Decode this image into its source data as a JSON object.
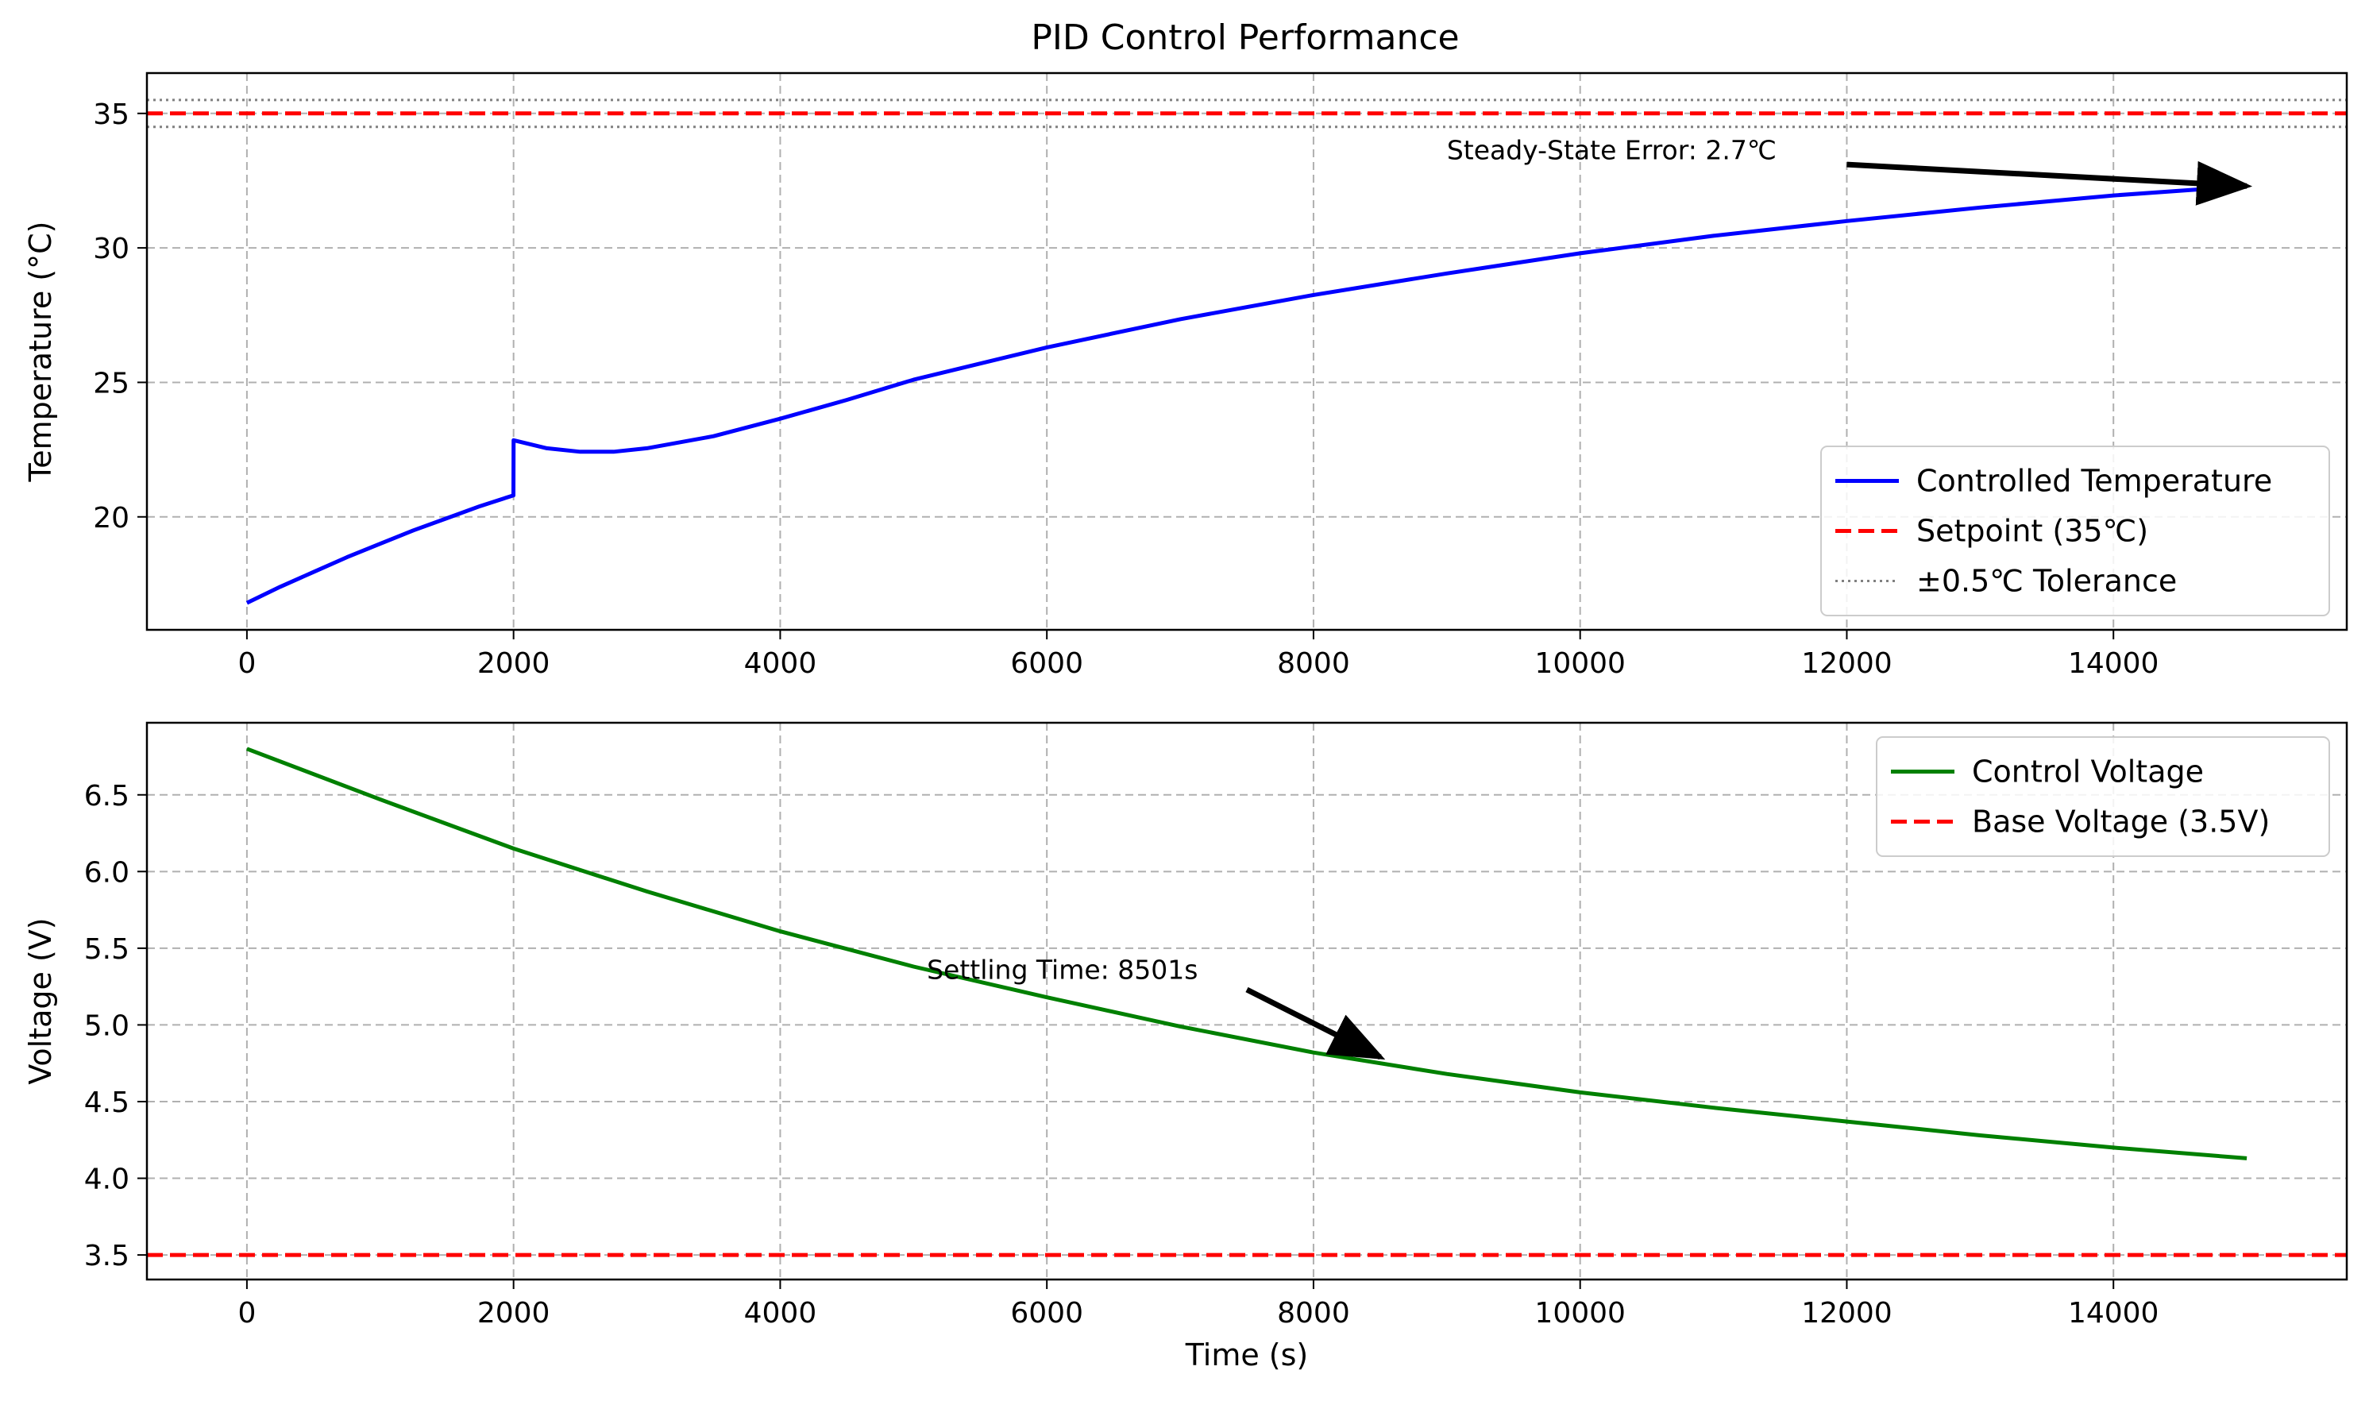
{
  "chart_data": [
    {
      "type": "line",
      "title": "PID Control Performance",
      "xlabel": "",
      "ylabel": "Temperature (°C)",
      "xlim": [
        -750,
        15750
      ],
      "ylim": [
        15.8,
        36.5
      ],
      "xticks": [
        0,
        2000,
        4000,
        6000,
        8000,
        10000,
        12000,
        14000
      ],
      "yticks": [
        20,
        25,
        30,
        35
      ],
      "grid": true,
      "legend_position": "lower-right",
      "series": [
        {
          "name": "Controlled Temperature",
          "color": "#0000ff",
          "style": "solid",
          "x": [
            0,
            250,
            500,
            750,
            1000,
            1250,
            1500,
            1750,
            1999,
            2000,
            2250,
            2500,
            2750,
            3000,
            3500,
            4000,
            4500,
            5000,
            6000,
            7000,
            8000,
            9000,
            10000,
            11000,
            12000,
            13000,
            14000,
            15000
          ],
          "y": [
            16.8,
            17.4,
            17.95,
            18.5,
            19.0,
            19.5,
            19.95,
            20.4,
            20.8,
            22.85,
            22.55,
            22.42,
            22.42,
            22.55,
            23.0,
            23.65,
            24.35,
            25.1,
            26.3,
            27.35,
            28.25,
            29.05,
            29.8,
            30.45,
            31.0,
            31.5,
            31.95,
            32.3
          ]
        },
        {
          "name": "Setpoint (35℃)",
          "color": "#ff0000",
          "style": "dashed",
          "hline": 35
        },
        {
          "name": "±0.5℃ Tolerance",
          "color": "#808080",
          "style": "dotted",
          "hlines": [
            35.5,
            34.5
          ]
        }
      ],
      "annotations": [
        {
          "text": "Steady-State Error: 2.7℃",
          "text_x": 9000,
          "text_y": 33.3,
          "arrow_start_x": 12000,
          "arrow_start_y": 33.1,
          "arrow_end_x": 15000,
          "arrow_end_y": 32.3
        }
      ]
    },
    {
      "type": "line",
      "title": "",
      "xlabel": "Time (s)",
      "ylabel": "Voltage (V)",
      "xlim": [
        -750,
        15750
      ],
      "ylim": [
        3.34,
        6.97
      ],
      "xticks": [
        0,
        2000,
        4000,
        6000,
        8000,
        10000,
        12000,
        14000
      ],
      "yticks": [
        3.5,
        4.0,
        4.5,
        5.0,
        5.5,
        6.0,
        6.5
      ],
      "grid": true,
      "legend_position": "upper-right",
      "series": [
        {
          "name": "Control Voltage",
          "color": "#008000",
          "style": "solid",
          "x": [
            0,
            1000,
            2000,
            3000,
            4000,
            5000,
            6000,
            7000,
            8000,
            9000,
            10000,
            11000,
            12000,
            13000,
            14000,
            15000
          ],
          "y": [
            6.8,
            6.47,
            6.15,
            5.87,
            5.61,
            5.38,
            5.18,
            4.99,
            4.82,
            4.68,
            4.56,
            4.46,
            4.37,
            4.28,
            4.2,
            4.13
          ]
        },
        {
          "name": "Base Voltage (3.5V)",
          "color": "#ff0000",
          "style": "dashed",
          "hline": 3.5
        }
      ],
      "annotations": [
        {
          "text": "Settling Time: 8501s",
          "text_x": 5100,
          "text_y": 5.3,
          "arrow_start_x": 7500,
          "arrow_start_y": 5.23,
          "arrow_end_x": 8501,
          "arrow_end_y": 4.79
        }
      ]
    }
  ]
}
